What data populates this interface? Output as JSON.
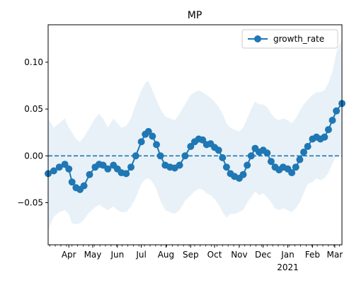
{
  "chart_data": {
    "type": "line",
    "title": "MP",
    "xlabel": "",
    "ylabel": "",
    "x_range": [
      "2020-03-06",
      "2021-03-10"
    ],
    "ylim": [
      -0.095,
      0.14
    ],
    "y_ticks": [
      -0.05,
      0.0,
      0.05,
      0.1
    ],
    "y_tick_labels": [
      "−0.05",
      "0.00",
      "0.05",
      "0.10"
    ],
    "x_ticks": [
      {
        "date": "2020-04-01",
        "label": "Apr"
      },
      {
        "date": "2020-05-01",
        "label": "May"
      },
      {
        "date": "2020-06-01",
        "label": "Jun"
      },
      {
        "date": "2020-07-01",
        "label": "Jul"
      },
      {
        "date": "2020-08-01",
        "label": "Aug"
      },
      {
        "date": "2020-09-01",
        "label": "Sep"
      },
      {
        "date": "2020-10-01",
        "label": "Oct"
      },
      {
        "date": "2020-11-01",
        "label": "Nov"
      },
      {
        "date": "2020-12-01",
        "label": "Dec"
      },
      {
        "date": "2021-01-01",
        "label": "Jan",
        "sublabel": "2021"
      },
      {
        "date": "2021-02-01",
        "label": "Feb"
      },
      {
        "date": "2021-03-01",
        "label": "Mar"
      }
    ],
    "legend": {
      "position": "top-right",
      "entries": [
        "growth_rate"
      ]
    },
    "reference_line": {
      "y": 0,
      "style": "dashed"
    },
    "grid": false,
    "series": [
      {
        "name": "growth_rate",
        "color": "#1f77b4",
        "band_color": "#1f77b4",
        "x": [
          "2020-03-06",
          "2020-03-13",
          "2020-03-20",
          "2020-03-27",
          "2020-04-01",
          "2020-04-05",
          "2020-04-10",
          "2020-04-15",
          "2020-04-20",
          "2020-04-27",
          "2020-05-04",
          "2020-05-09",
          "2020-05-14",
          "2020-05-20",
          "2020-05-27",
          "2020-06-01",
          "2020-06-06",
          "2020-06-12",
          "2020-06-18",
          "2020-06-24",
          "2020-07-01",
          "2020-07-06",
          "2020-07-10",
          "2020-07-15",
          "2020-07-20",
          "2020-07-25",
          "2020-07-31",
          "2020-08-06",
          "2020-08-12",
          "2020-08-18",
          "2020-08-25",
          "2020-09-01",
          "2020-09-06",
          "2020-09-11",
          "2020-09-16",
          "2020-09-21",
          "2020-09-26",
          "2020-10-01",
          "2020-10-06",
          "2020-10-11",
          "2020-10-16",
          "2020-10-21",
          "2020-10-26",
          "2020-11-01",
          "2020-11-06",
          "2020-11-11",
          "2020-11-16",
          "2020-11-21",
          "2020-11-26",
          "2020-12-01",
          "2020-12-06",
          "2020-12-11",
          "2020-12-16",
          "2020-12-21",
          "2020-12-26",
          "2021-01-01",
          "2021-01-06",
          "2021-01-11",
          "2021-01-16",
          "2021-01-21",
          "2021-01-26",
          "2021-02-01",
          "2021-02-06",
          "2021-02-11",
          "2021-02-16",
          "2021-02-21",
          "2021-02-26",
          "2021-03-03",
          "2021-03-10"
        ],
        "values": [
          -0.019,
          -0.016,
          -0.012,
          -0.009,
          -0.014,
          -0.028,
          -0.034,
          -0.036,
          -0.032,
          -0.02,
          -0.012,
          -0.009,
          -0.01,
          -0.014,
          -0.01,
          -0.014,
          -0.018,
          -0.019,
          -0.012,
          0.0,
          0.015,
          0.023,
          0.026,
          0.021,
          0.012,
          0.0,
          -0.01,
          -0.012,
          -0.013,
          -0.01,
          0.0,
          0.01,
          0.015,
          0.018,
          0.017,
          0.012,
          0.013,
          0.009,
          0.006,
          -0.002,
          -0.012,
          -0.019,
          -0.022,
          -0.024,
          -0.02,
          -0.01,
          0.0,
          0.008,
          0.004,
          0.006,
          0.003,
          -0.006,
          -0.012,
          -0.015,
          -0.012,
          -0.014,
          -0.018,
          -0.012,
          -0.004,
          0.004,
          0.01,
          0.018,
          0.02,
          0.018,
          0.02,
          0.028,
          0.038,
          0.048,
          0.056
        ],
        "upper": [
          0.04,
          0.03,
          0.035,
          0.04,
          0.03,
          0.025,
          0.018,
          0.015,
          0.02,
          0.03,
          0.04,
          0.045,
          0.04,
          0.03,
          0.04,
          0.035,
          0.03,
          0.032,
          0.04,
          0.055,
          0.07,
          0.078,
          0.08,
          0.07,
          0.06,
          0.05,
          0.042,
          0.04,
          0.038,
          0.045,
          0.055,
          0.065,
          0.068,
          0.07,
          0.068,
          0.065,
          0.062,
          0.058,
          0.052,
          0.045,
          0.035,
          0.03,
          0.028,
          0.026,
          0.03,
          0.04,
          0.05,
          0.058,
          0.055,
          0.055,
          0.052,
          0.045,
          0.04,
          0.038,
          0.04,
          0.038,
          0.035,
          0.04,
          0.048,
          0.055,
          0.06,
          0.065,
          0.068,
          0.068,
          0.07,
          0.078,
          0.09,
          0.11,
          0.125
        ],
        "lower": [
          -0.08,
          -0.065,
          -0.06,
          -0.058,
          -0.062,
          -0.072,
          -0.073,
          -0.072,
          -0.068,
          -0.06,
          -0.055,
          -0.052,
          -0.055,
          -0.058,
          -0.054,
          -0.058,
          -0.06,
          -0.06,
          -0.054,
          -0.045,
          -0.03,
          -0.025,
          -0.024,
          -0.028,
          -0.036,
          -0.048,
          -0.058,
          -0.06,
          -0.062,
          -0.058,
          -0.048,
          -0.042,
          -0.038,
          -0.035,
          -0.036,
          -0.04,
          -0.042,
          -0.046,
          -0.052,
          -0.06,
          -0.066,
          -0.062,
          -0.062,
          -0.06,
          -0.058,
          -0.05,
          -0.044,
          -0.038,
          -0.042,
          -0.04,
          -0.044,
          -0.05,
          -0.056,
          -0.058,
          -0.056,
          -0.058,
          -0.06,
          -0.056,
          -0.05,
          -0.04,
          -0.03,
          -0.028,
          -0.024,
          -0.026,
          -0.024,
          -0.018,
          -0.008,
          0.0,
          0.002
        ]
      }
    ]
  }
}
